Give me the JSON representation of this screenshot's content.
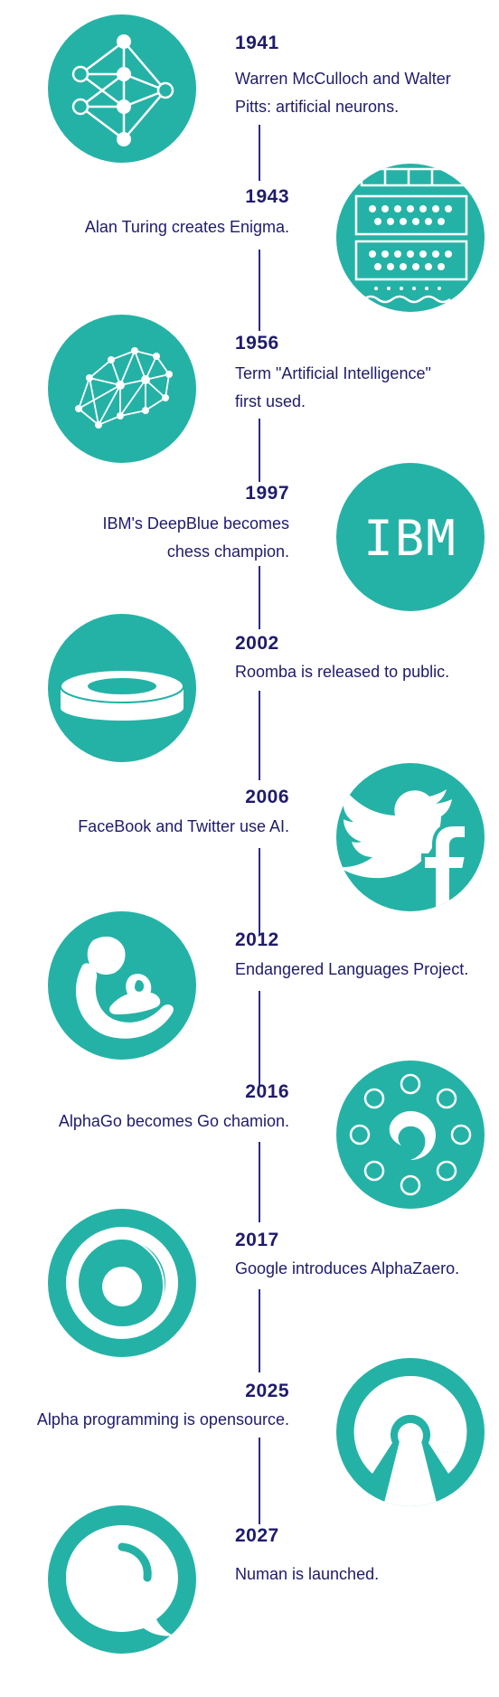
{
  "colors": {
    "accent": "#25b2a6",
    "text": "#1f1b6b",
    "line": "#2b2a86"
  },
  "events": [
    {
      "year": "1941",
      "desc_lines": [
        "Warren McCulloch and Walter",
        "Pitts: artificial neurons."
      ],
      "icon": "neural-network-icon"
    },
    {
      "year": "1943",
      "desc_lines": [
        "Alan Turing creates Enigma."
      ],
      "icon": "enigma-machine-icon"
    },
    {
      "year": "1956",
      "desc_lines": [
        "Term \"Artificial Intelligence\"",
        "first used."
      ],
      "icon": "brain-network-icon"
    },
    {
      "year": "1997",
      "desc_lines": [
        "IBM's DeepBlue becomes",
        "chess champion."
      ],
      "icon": "ibm-logo-icon",
      "logo_text": "IBM"
    },
    {
      "year": "2002",
      "desc_lines": [
        "Roomba is released to public."
      ],
      "icon": "roomba-icon"
    },
    {
      "year": "2006",
      "desc_lines": [
        "FaceBook and Twitter use AI."
      ],
      "icon": "twitter-facebook-icon"
    },
    {
      "year": "2012",
      "desc_lines": [
        "Endangered Languages Project."
      ],
      "icon": "mother-child-icon"
    },
    {
      "year": "2016",
      "desc_lines": [
        "AlphaGo becomes Go chamion."
      ],
      "icon": "go-stones-icon"
    },
    {
      "year": "2017",
      "desc_lines": [
        "Google introduces AlphaZaero."
      ],
      "icon": "spiral-icon"
    },
    {
      "year": "2025",
      "desc_lines": [
        "Alpha programming is opensource."
      ],
      "icon": "open-source-icon"
    },
    {
      "year": "2027",
      "desc_lines": [
        "Numan is launched."
      ],
      "icon": "chat-bubble-icon"
    }
  ]
}
